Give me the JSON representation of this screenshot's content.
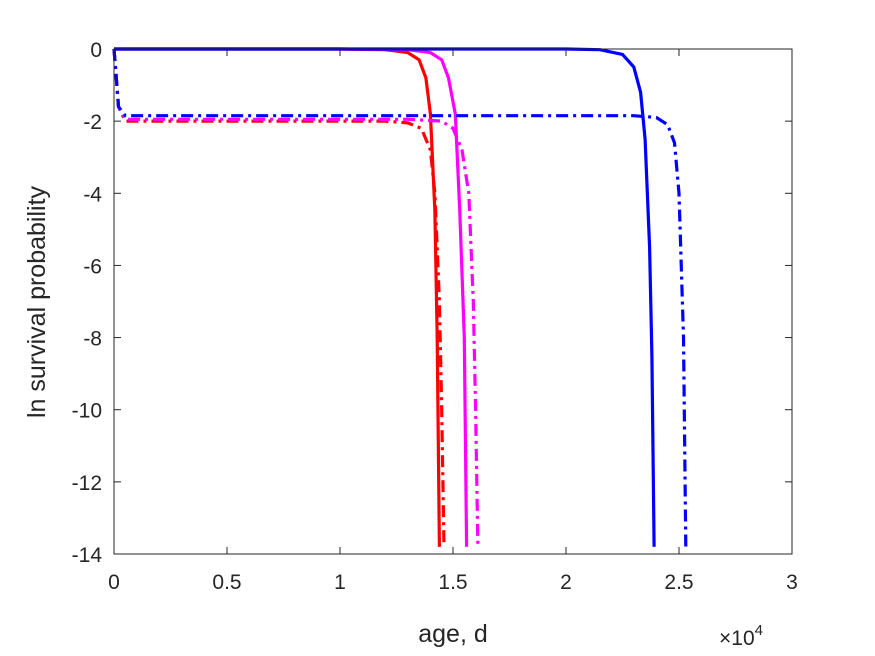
{
  "chart_data": {
    "type": "line",
    "title": "",
    "xlabel": "age, d",
    "ylabel": "ln survival probability",
    "x_multiplier_label": "×10",
    "x_multiplier_exponent": "4",
    "xlim": [
      0,
      3
    ],
    "ylim": [
      -14,
      0
    ],
    "xticks": [
      0,
      0.5,
      1,
      1.5,
      2,
      2.5,
      3
    ],
    "xtick_labels": [
      "0",
      "0.5",
      "1",
      "1.5",
      "2",
      "2.5",
      "3"
    ],
    "yticks": [
      0,
      -2,
      -4,
      -6,
      -8,
      -10,
      -12,
      -14
    ],
    "ytick_labels": [
      "0",
      "-2",
      "-4",
      "-6",
      "-8",
      "-10",
      "-12",
      "-14"
    ],
    "grid": false,
    "legend": "none",
    "series": [
      {
        "color": "#ff0000",
        "style": "solid",
        "x": [
          0,
          0.5,
          1.0,
          1.2,
          1.3,
          1.35,
          1.38,
          1.4,
          1.42,
          1.43,
          1.44
        ],
        "y": [
          0,
          0,
          0,
          -0.02,
          -0.1,
          -0.3,
          -0.8,
          -1.8,
          -4.5,
          -8.0,
          -13.8
        ]
      },
      {
        "color": "#ff0000",
        "style": "dashdot",
        "x": [
          0,
          0.01,
          0.02,
          0.05,
          0.5,
          1.0,
          1.2,
          1.3,
          1.36,
          1.4,
          1.42,
          1.44,
          1.45,
          1.46
        ],
        "y": [
          0,
          -0.8,
          -1.6,
          -2.0,
          -2.0,
          -2.0,
          -2.0,
          -2.05,
          -2.2,
          -2.8,
          -4.0,
          -7.0,
          -10.0,
          -13.8
        ]
      },
      {
        "color": "#ff00ff",
        "style": "solid",
        "x": [
          0,
          0.5,
          1.0,
          1.3,
          1.4,
          1.45,
          1.48,
          1.51,
          1.53,
          1.55,
          1.56
        ],
        "y": [
          0,
          0,
          0,
          -0.02,
          -0.1,
          -0.3,
          -0.8,
          -1.8,
          -4.5,
          -8.0,
          -13.8
        ]
      },
      {
        "color": "#ff00ff",
        "style": "dashdot",
        "x": [
          0,
          0.01,
          0.02,
          0.05,
          0.5,
          1.0,
          1.3,
          1.45,
          1.5,
          1.54,
          1.57,
          1.59,
          1.6,
          1.61
        ],
        "y": [
          0,
          -0.8,
          -1.6,
          -1.95,
          -1.95,
          -1.95,
          -1.95,
          -2.0,
          -2.2,
          -2.8,
          -4.0,
          -7.0,
          -10.0,
          -13.8
        ]
      },
      {
        "color": "#0000ff",
        "style": "solid",
        "x": [
          0,
          0.5,
          1.0,
          1.5,
          2.0,
          2.15,
          2.25,
          2.3,
          2.33,
          2.35,
          2.37,
          2.38,
          2.39
        ],
        "y": [
          0,
          0,
          0,
          0,
          0,
          -0.02,
          -0.15,
          -0.5,
          -1.2,
          -2.5,
          -5.5,
          -8.5,
          -13.8
        ]
      },
      {
        "color": "#0000ff",
        "style": "dashdot",
        "x": [
          0,
          0.01,
          0.02,
          0.05,
          0.5,
          1.0,
          1.5,
          2.0,
          2.3,
          2.4,
          2.45,
          2.48,
          2.5,
          2.52,
          2.53
        ],
        "y": [
          0,
          -0.8,
          -1.6,
          -1.85,
          -1.85,
          -1.85,
          -1.85,
          -1.85,
          -1.85,
          -1.9,
          -2.1,
          -2.6,
          -4.0,
          -8.0,
          -13.8
        ]
      }
    ]
  }
}
